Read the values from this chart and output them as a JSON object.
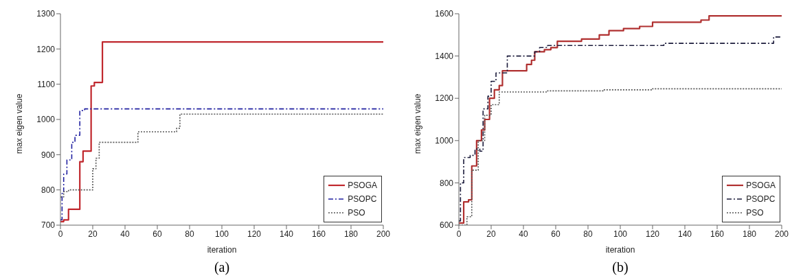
{
  "chart_data": [
    {
      "type": "step",
      "xlabel": "iteration",
      "ylabel": "max eigen value",
      "xlim": [
        0,
        200
      ],
      "xticks": [
        0,
        20,
        40,
        60,
        80,
        100,
        120,
        140,
        160,
        180,
        200
      ],
      "ylim": [
        700,
        1300
      ],
      "yticks": [
        700,
        800,
        900,
        1000,
        1100,
        1200,
        1300
      ],
      "legend": "bottom right",
      "marker": "none",
      "annotations": [
        "(a)"
      ],
      "series": [
        {
          "name": "PSOGA",
          "color": "#c0272d",
          "line_style": "solid",
          "x": [
            0,
            2,
            5,
            12,
            14,
            19,
            21,
            26,
            200
          ],
          "values": [
            710,
            715,
            745,
            880,
            910,
            1095,
            1105,
            1220,
            1220
          ]
        },
        {
          "name": "PSOPC",
          "color": "#1f1fa0",
          "line_style": "dashed",
          "x": [
            0,
            1,
            2,
            4,
            7,
            9,
            12,
            15,
            200
          ],
          "values": [
            715,
            790,
            845,
            885,
            935,
            955,
            1025,
            1030,
            1030
          ]
        },
        {
          "name": "PSO",
          "color": "#555555",
          "line_style": "dotted",
          "x": [
            0,
            2,
            5,
            20,
            22,
            24,
            48,
            72,
            74,
            200
          ],
          "values": [
            780,
            795,
            800,
            860,
            890,
            935,
            965,
            975,
            1015,
            1015
          ]
        }
      ]
    },
    {
      "type": "step",
      "xlabel": "iteration",
      "ylabel": "max eigen value",
      "xlim": [
        0,
        200
      ],
      "xticks": [
        0,
        20,
        40,
        60,
        80,
        100,
        120,
        140,
        160,
        180,
        200
      ],
      "ylim": [
        600,
        1600
      ],
      "yticks": [
        600,
        800,
        1000,
        1200,
        1400,
        1600
      ],
      "legend": "bottom right",
      "marker": "none",
      "annotations": [
        "(b)"
      ],
      "series": [
        {
          "name": "PSOGA",
          "color": "#b03030",
          "line_style": "solid",
          "x": [
            0,
            3,
            6,
            8,
            11,
            14,
            16,
            19,
            22,
            25,
            27,
            42,
            45,
            47,
            53,
            57,
            61,
            76,
            87,
            93,
            102,
            112,
            120,
            150,
            155,
            200
          ],
          "values": [
            610,
            710,
            720,
            880,
            1000,
            1050,
            1100,
            1200,
            1240,
            1260,
            1330,
            1360,
            1380,
            1420,
            1430,
            1440,
            1470,
            1480,
            1500,
            1520,
            1530,
            1540,
            1560,
            1570,
            1590,
            1590
          ]
        },
        {
          "name": "PSOPC",
          "color": "#1a1a3a",
          "line_style": "dashed",
          "x": [
            0,
            1,
            3,
            7,
            10,
            13,
            15,
            18,
            20,
            23,
            30,
            47,
            50,
            55,
            127,
            195,
            200
          ],
          "values": [
            620,
            800,
            920,
            930,
            960,
            950,
            1150,
            1210,
            1280,
            1320,
            1400,
            1420,
            1440,
            1450,
            1460,
            1490,
            1490
          ]
        },
        {
          "name": "PSO",
          "color": "#555555",
          "line_style": "dotted",
          "x": [
            0,
            5,
            8,
            12,
            16,
            20,
            25,
            55,
            90,
            120,
            200
          ],
          "values": [
            600,
            640,
            860,
            1000,
            1120,
            1170,
            1230,
            1235,
            1240,
            1245,
            1245
          ]
        }
      ]
    }
  ]
}
